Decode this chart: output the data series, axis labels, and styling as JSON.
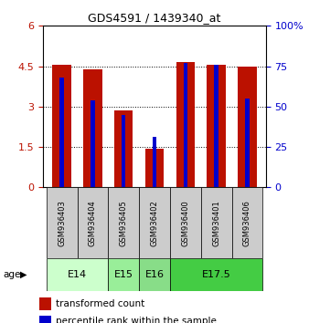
{
  "title": "GDS4591 / 1439340_at",
  "samples": [
    "GSM936403",
    "GSM936404",
    "GSM936405",
    "GSM936402",
    "GSM936400",
    "GSM936401",
    "GSM936406"
  ],
  "transformed_count": [
    4.55,
    4.4,
    2.85,
    1.45,
    4.65,
    4.55,
    4.5
  ],
  "percentile_rank_pct": [
    68,
    54,
    45,
    31,
    77,
    76,
    55
  ],
  "age_groups": [
    {
      "label": "E14",
      "start": 0,
      "end": 2,
      "color": "#ccffcc"
    },
    {
      "label": "E15",
      "start": 2,
      "end": 3,
      "color": "#99ee99"
    },
    {
      "label": "E16",
      "start": 3,
      "end": 4,
      "color": "#88dd88"
    },
    {
      "label": "E17.5",
      "start": 4,
      "end": 7,
      "color": "#44cc44"
    }
  ],
  "ylim_left": [
    0,
    6
  ],
  "ylim_right": [
    0,
    100
  ],
  "yticks_left": [
    0,
    1.5,
    3,
    4.5,
    6
  ],
  "yticks_right": [
    0,
    25,
    50,
    75,
    100
  ],
  "bar_color_red": "#bb1100",
  "bar_color_blue": "#0000cc",
  "sample_bg_color": "#cccccc",
  "figsize": [
    3.38,
    3.54
  ],
  "dpi": 100
}
